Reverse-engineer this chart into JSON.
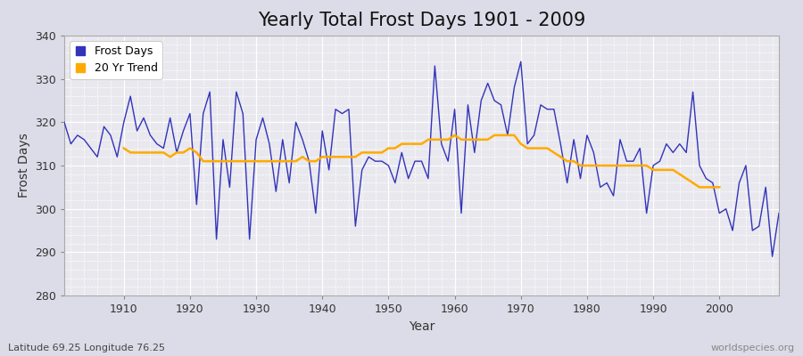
{
  "title": "Yearly Total Frost Days 1901 - 2009",
  "xlabel": "Year",
  "ylabel": "Frost Days",
  "subtitle": "Latitude 69.25 Longitude 76.25",
  "watermark": "worldspecies.org",
  "years": [
    1901,
    1902,
    1903,
    1904,
    1905,
    1906,
    1907,
    1908,
    1909,
    1910,
    1911,
    1912,
    1913,
    1914,
    1915,
    1916,
    1917,
    1918,
    1919,
    1920,
    1921,
    1922,
    1923,
    1924,
    1925,
    1926,
    1927,
    1928,
    1929,
    1930,
    1931,
    1932,
    1933,
    1934,
    1935,
    1936,
    1937,
    1938,
    1939,
    1940,
    1941,
    1942,
    1943,
    1944,
    1945,
    1946,
    1947,
    1948,
    1949,
    1950,
    1951,
    1952,
    1953,
    1954,
    1955,
    1956,
    1957,
    1958,
    1959,
    1960,
    1961,
    1962,
    1963,
    1964,
    1965,
    1966,
    1967,
    1968,
    1969,
    1970,
    1971,
    1972,
    1973,
    1974,
    1975,
    1976,
    1977,
    1978,
    1979,
    1980,
    1981,
    1982,
    1983,
    1984,
    1985,
    1986,
    1987,
    1988,
    1989,
    1990,
    1991,
    1992,
    1993,
    1994,
    1995,
    1996,
    1997,
    1998,
    1999,
    2000,
    2001,
    2002,
    2003,
    2004,
    2005,
    2006,
    2007,
    2008,
    2009
  ],
  "frost_days": [
    320,
    315,
    317,
    316,
    314,
    312,
    319,
    317,
    312,
    320,
    326,
    318,
    321,
    317,
    315,
    314,
    321,
    313,
    318,
    322,
    301,
    322,
    327,
    293,
    316,
    305,
    327,
    322,
    293,
    316,
    321,
    315,
    304,
    316,
    306,
    320,
    316,
    311,
    299,
    318,
    309,
    323,
    322,
    323,
    296,
    309,
    312,
    311,
    311,
    310,
    306,
    313,
    307,
    311,
    311,
    307,
    333,
    315,
    311,
    323,
    299,
    324,
    313,
    325,
    329,
    325,
    324,
    317,
    328,
    334,
    315,
    317,
    324,
    323,
    323,
    315,
    306,
    316,
    307,
    317,
    313,
    305,
    306,
    303,
    316,
    311,
    311,
    314,
    299,
    310,
    311,
    315,
    313,
    315,
    313,
    327,
    310,
    307,
    306,
    299,
    300,
    295,
    306,
    310,
    295,
    296,
    305,
    289,
    299
  ],
  "trend_years": [
    1910,
    1911,
    1912,
    1913,
    1914,
    1915,
    1916,
    1917,
    1918,
    1919,
    1920,
    1921,
    1922,
    1923,
    1924,
    1925,
    1926,
    1927,
    1928,
    1929,
    1930,
    1931,
    1932,
    1933,
    1934,
    1935,
    1936,
    1937,
    1938,
    1939,
    1940,
    1941,
    1942,
    1943,
    1944,
    1945,
    1946,
    1947,
    1948,
    1949,
    1950,
    1951,
    1952,
    1953,
    1954,
    1955,
    1956,
    1957,
    1958,
    1959,
    1960,
    1961,
    1962,
    1963,
    1964,
    1965,
    1966,
    1967,
    1968,
    1969,
    1970,
    1971,
    1972,
    1973,
    1974,
    1975,
    1976,
    1977,
    1978,
    1979,
    1980,
    1981,
    1982,
    1983,
    1984,
    1985,
    1986,
    1987,
    1988,
    1989,
    1990,
    1991,
    1992,
    1993,
    1994,
    1995,
    1996,
    1997,
    1998,
    1999,
    2000
  ],
  "trend_values": [
    314,
    313,
    313,
    313,
    313,
    313,
    313,
    312,
    313,
    313,
    314,
    313,
    311,
    311,
    311,
    311,
    311,
    311,
    311,
    311,
    311,
    311,
    311,
    311,
    311,
    311,
    311,
    312,
    311,
    311,
    312,
    312,
    312,
    312,
    312,
    312,
    313,
    313,
    313,
    313,
    314,
    314,
    315,
    315,
    315,
    315,
    316,
    316,
    316,
    316,
    317,
    316,
    316,
    316,
    316,
    316,
    317,
    317,
    317,
    317,
    315,
    314,
    314,
    314,
    314,
    313,
    312,
    311,
    311,
    310,
    310,
    310,
    310,
    310,
    310,
    310,
    310,
    310,
    310,
    310,
    309,
    309,
    309,
    309,
    308,
    307,
    306,
    305,
    305,
    305,
    305
  ],
  "line_color": "#3333bb",
  "trend_color": "#ffaa00",
  "bg_color": "#dcdce8",
  "plot_bg_color": "#e8e8ee",
  "grid_color": "#ffffff",
  "ylim": [
    280,
    340
  ],
  "xlim": [
    1901,
    2009
  ],
  "title_fontsize": 15,
  "axis_fontsize": 10,
  "legend_fontsize": 9
}
